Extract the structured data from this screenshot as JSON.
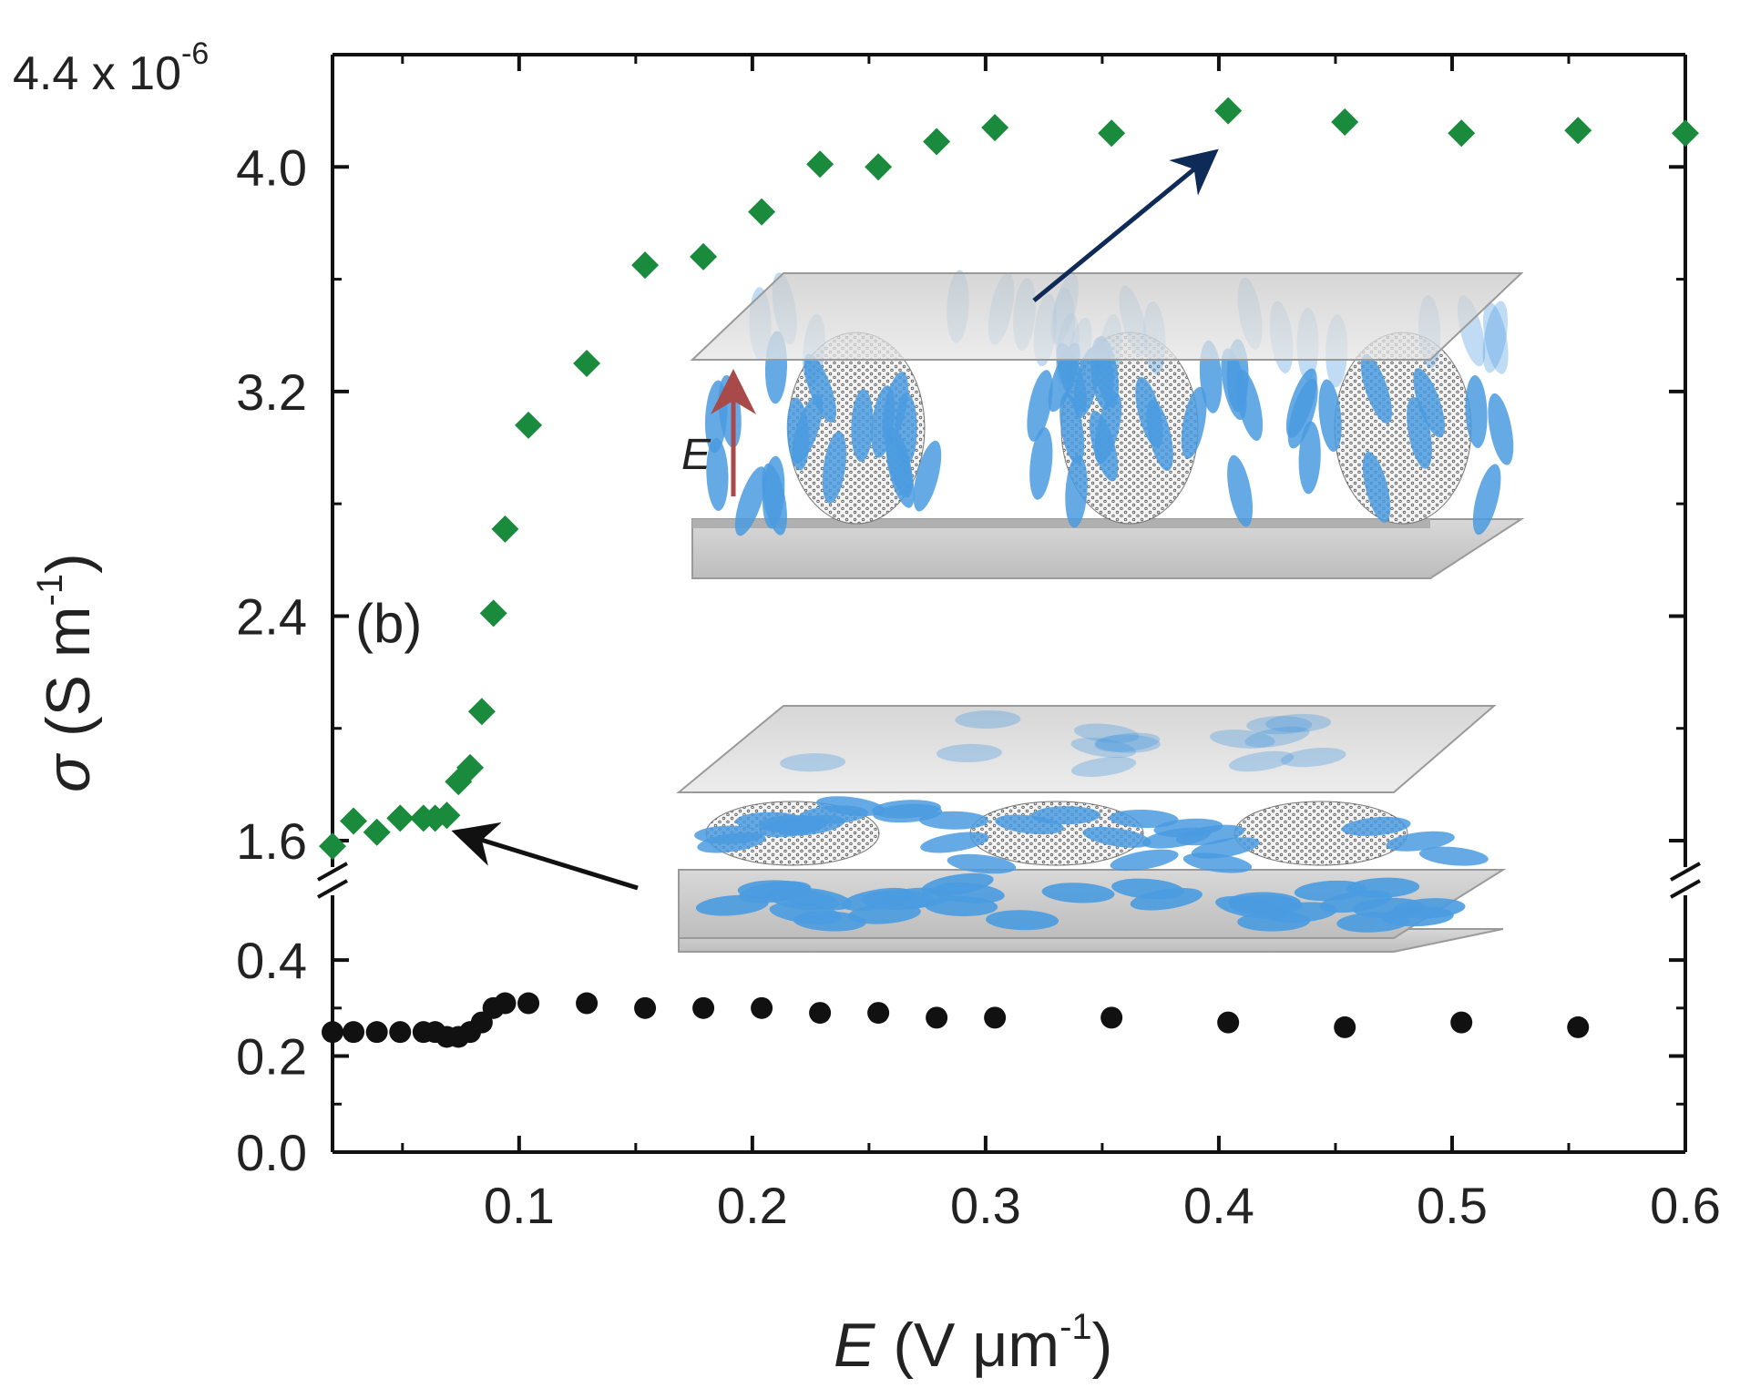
{
  "chart_data": {
    "type": "scatter",
    "panel_label": "(b)",
    "xlabel": {
      "symbol": "E",
      "units": "(V μm",
      "exp": "-1",
      "close": ")"
    },
    "ylabel": {
      "symbol": "σ",
      "units": "(S m",
      "exp": "-1",
      "close": ")"
    },
    "y_multiplier": {
      "base": "4.4 x 10",
      "exp": "-6"
    },
    "xlim": [
      0.02,
      0.6
    ],
    "xticks": [
      0.1,
      0.2,
      0.3,
      0.4,
      0.5,
      0.6
    ],
    "xtick_labels": [
      "0.1",
      "0.2",
      "0.3",
      "0.4",
      "0.5",
      "0.6"
    ],
    "axis_break": true,
    "upper_segment": {
      "ylim": [
        1.48,
        4.4
      ],
      "yticks": [
        1.6,
        2.4,
        3.2,
        4.0
      ],
      "ytick_labels": [
        "1.6",
        "2.4",
        "3.2",
        "4.0"
      ]
    },
    "lower_segment": {
      "ylim": [
        0.0,
        0.55
      ],
      "yticks": [
        0.0,
        0.2,
        0.4
      ],
      "ytick_labels": [
        "0.0",
        "0.2",
        "0.4"
      ]
    },
    "series": [
      {
        "name": "green diamonds",
        "color": "#1a8a3c",
        "marker": "diamond",
        "segment": "upper",
        "x": [
          0.02,
          0.029,
          0.039,
          0.049,
          0.059,
          0.064,
          0.069,
          0.074,
          0.079,
          0.084,
          0.089,
          0.094,
          0.104,
          0.129,
          0.154,
          0.179,
          0.204,
          0.229,
          0.254,
          0.279,
          0.304,
          0.354,
          0.404,
          0.454,
          0.504,
          0.554,
          0.6
        ],
        "y": [
          1.58,
          1.67,
          1.63,
          1.68,
          1.68,
          1.68,
          1.69,
          1.81,
          1.86,
          2.06,
          2.41,
          2.71,
          3.08,
          3.3,
          3.65,
          3.68,
          3.84,
          4.01,
          4.0,
          4.09,
          4.14,
          4.12,
          4.2,
          4.16,
          4.12,
          4.13,
          4.12
        ]
      },
      {
        "name": "black circles",
        "color": "#111111",
        "marker": "circle",
        "segment": "lower",
        "x": [
          0.02,
          0.029,
          0.039,
          0.049,
          0.059,
          0.064,
          0.069,
          0.074,
          0.079,
          0.084,
          0.089,
          0.094,
          0.104,
          0.129,
          0.154,
          0.179,
          0.204,
          0.229,
          0.254,
          0.279,
          0.304,
          0.354,
          0.404,
          0.454,
          0.504,
          0.554
        ],
        "y": [
          0.25,
          0.25,
          0.25,
          0.25,
          0.25,
          0.25,
          0.24,
          0.24,
          0.25,
          0.27,
          0.3,
          0.31,
          0.31,
          0.31,
          0.3,
          0.3,
          0.3,
          0.29,
          0.29,
          0.28,
          0.28,
          0.28,
          0.27,
          0.26,
          0.27,
          0.26
        ]
      }
    ],
    "inset_label": "E"
  }
}
